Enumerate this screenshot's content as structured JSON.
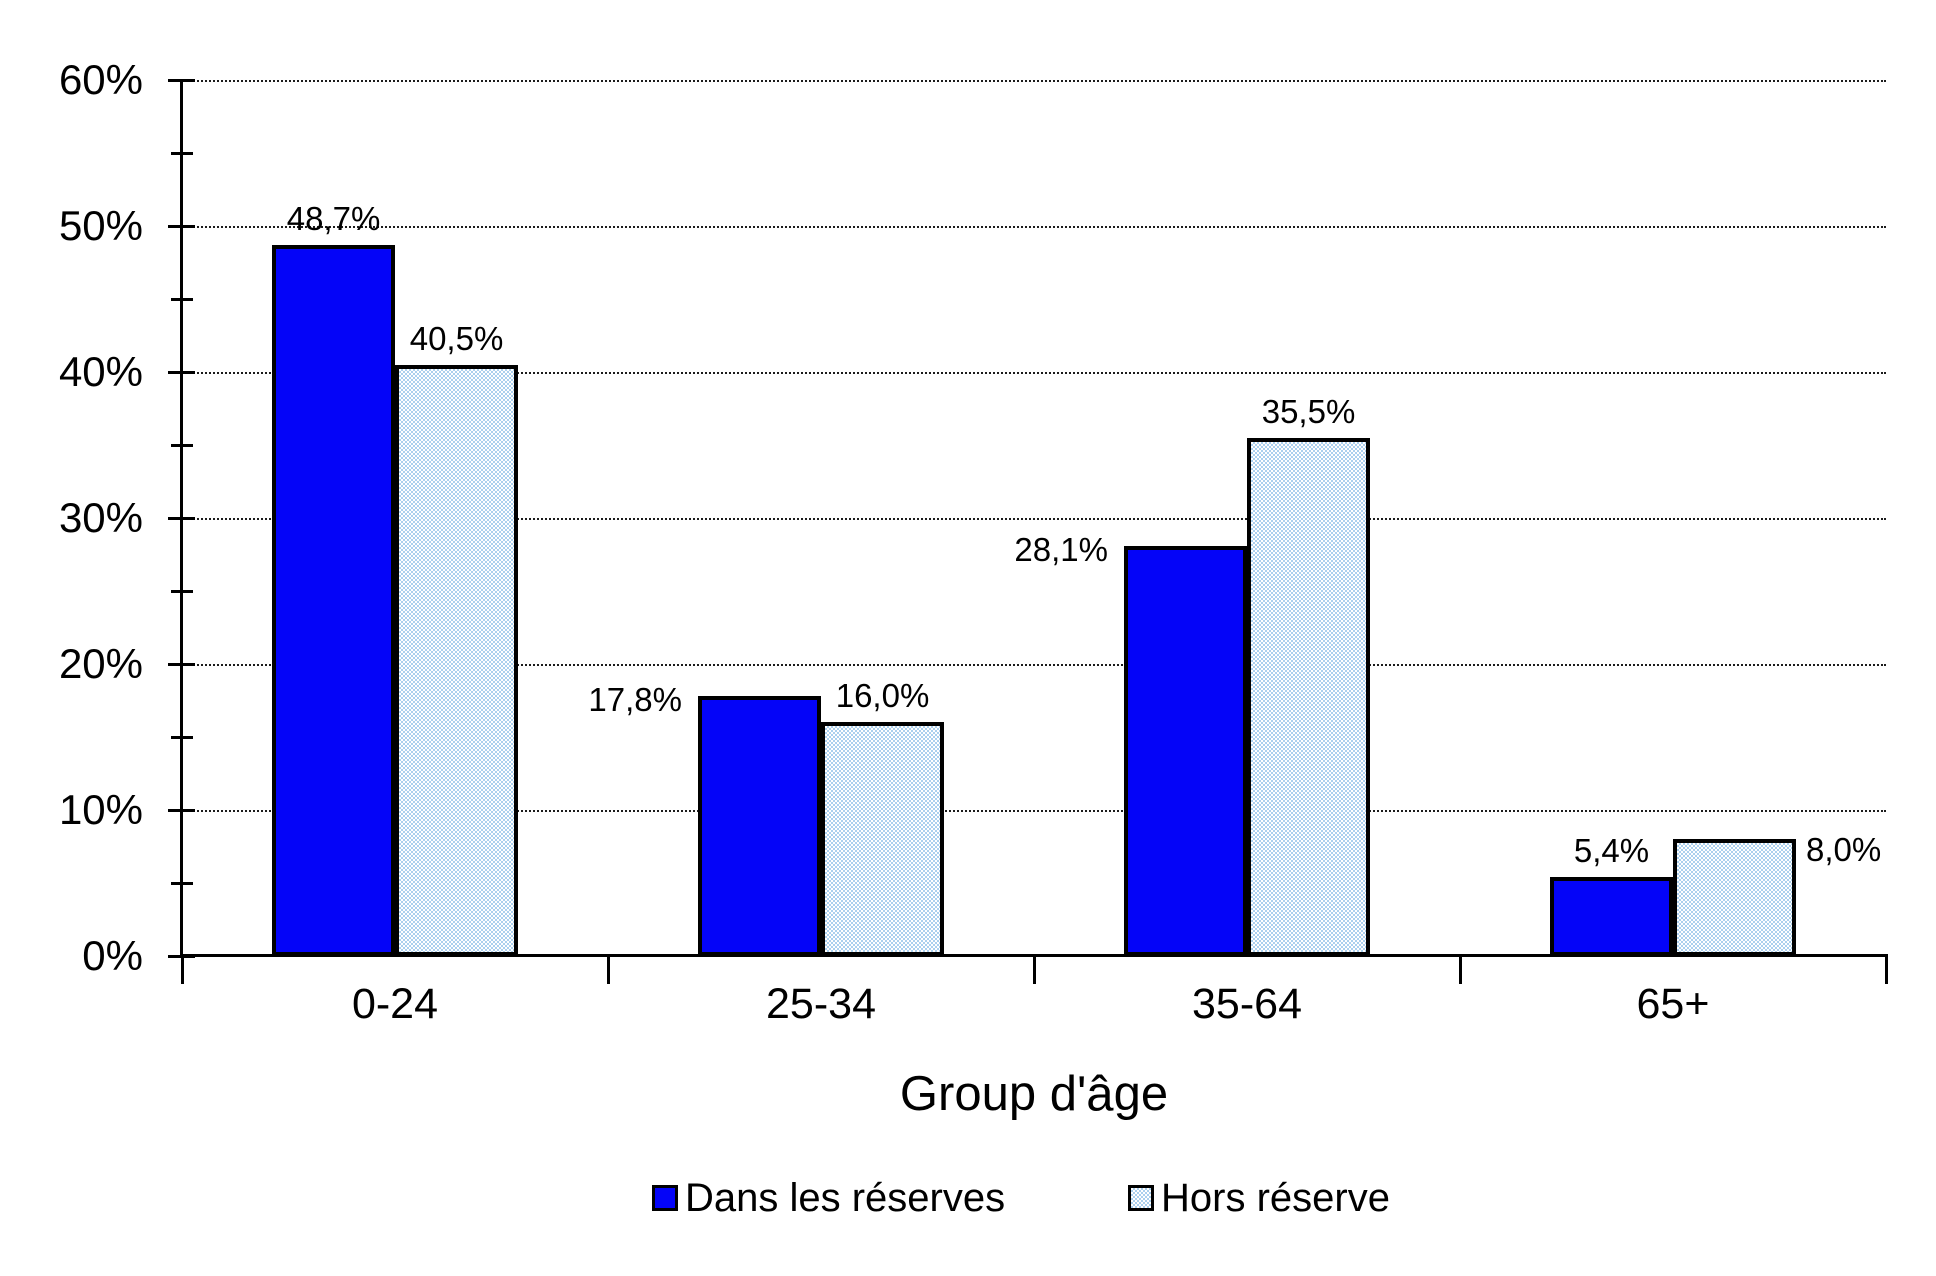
{
  "chart_data": {
    "type": "bar",
    "title": "",
    "xlabel": "Group d'âge",
    "ylabel": "",
    "categories": [
      "0-24",
      "25-34",
      "35-64",
      "65+"
    ],
    "series": [
      {
        "name": "Dans les réserves",
        "slug": "dans-les-reserves",
        "fill": "solid",
        "color": "#0404f8",
        "values": [
          48.7,
          17.8,
          28.1,
          5.4
        ],
        "labels": [
          "48,7%",
          "17,8%",
          "28,1%",
          "5,4%"
        ],
        "label_placements": [
          "above",
          "left",
          "left",
          "above"
        ]
      },
      {
        "name": "Hors réserve",
        "slug": "hors-reserve",
        "fill": "checker",
        "color": "#abd0ee",
        "values": [
          40.5,
          16.0,
          35.5,
          8.0
        ],
        "labels": [
          "40,5%",
          "16,0%",
          "35,5%",
          "8,0%"
        ],
        "label_placements": [
          "above",
          "above",
          "above",
          "right"
        ]
      }
    ],
    "y_axis": {
      "min": 0,
      "max": 60,
      "major_step": 10,
      "minor_step": 5,
      "tick_labels": [
        "0%",
        "10%",
        "20%",
        "30%",
        "40%",
        "50%",
        "60%"
      ],
      "gridlines": "dotted"
    },
    "legend_position": "bottom",
    "decimal_separator": ","
  },
  "colors": {
    "bar_dark_blue": "#0404f8",
    "bar_light_blue": "#abd0ee",
    "outline": "#000000",
    "background": "#ffffff"
  }
}
